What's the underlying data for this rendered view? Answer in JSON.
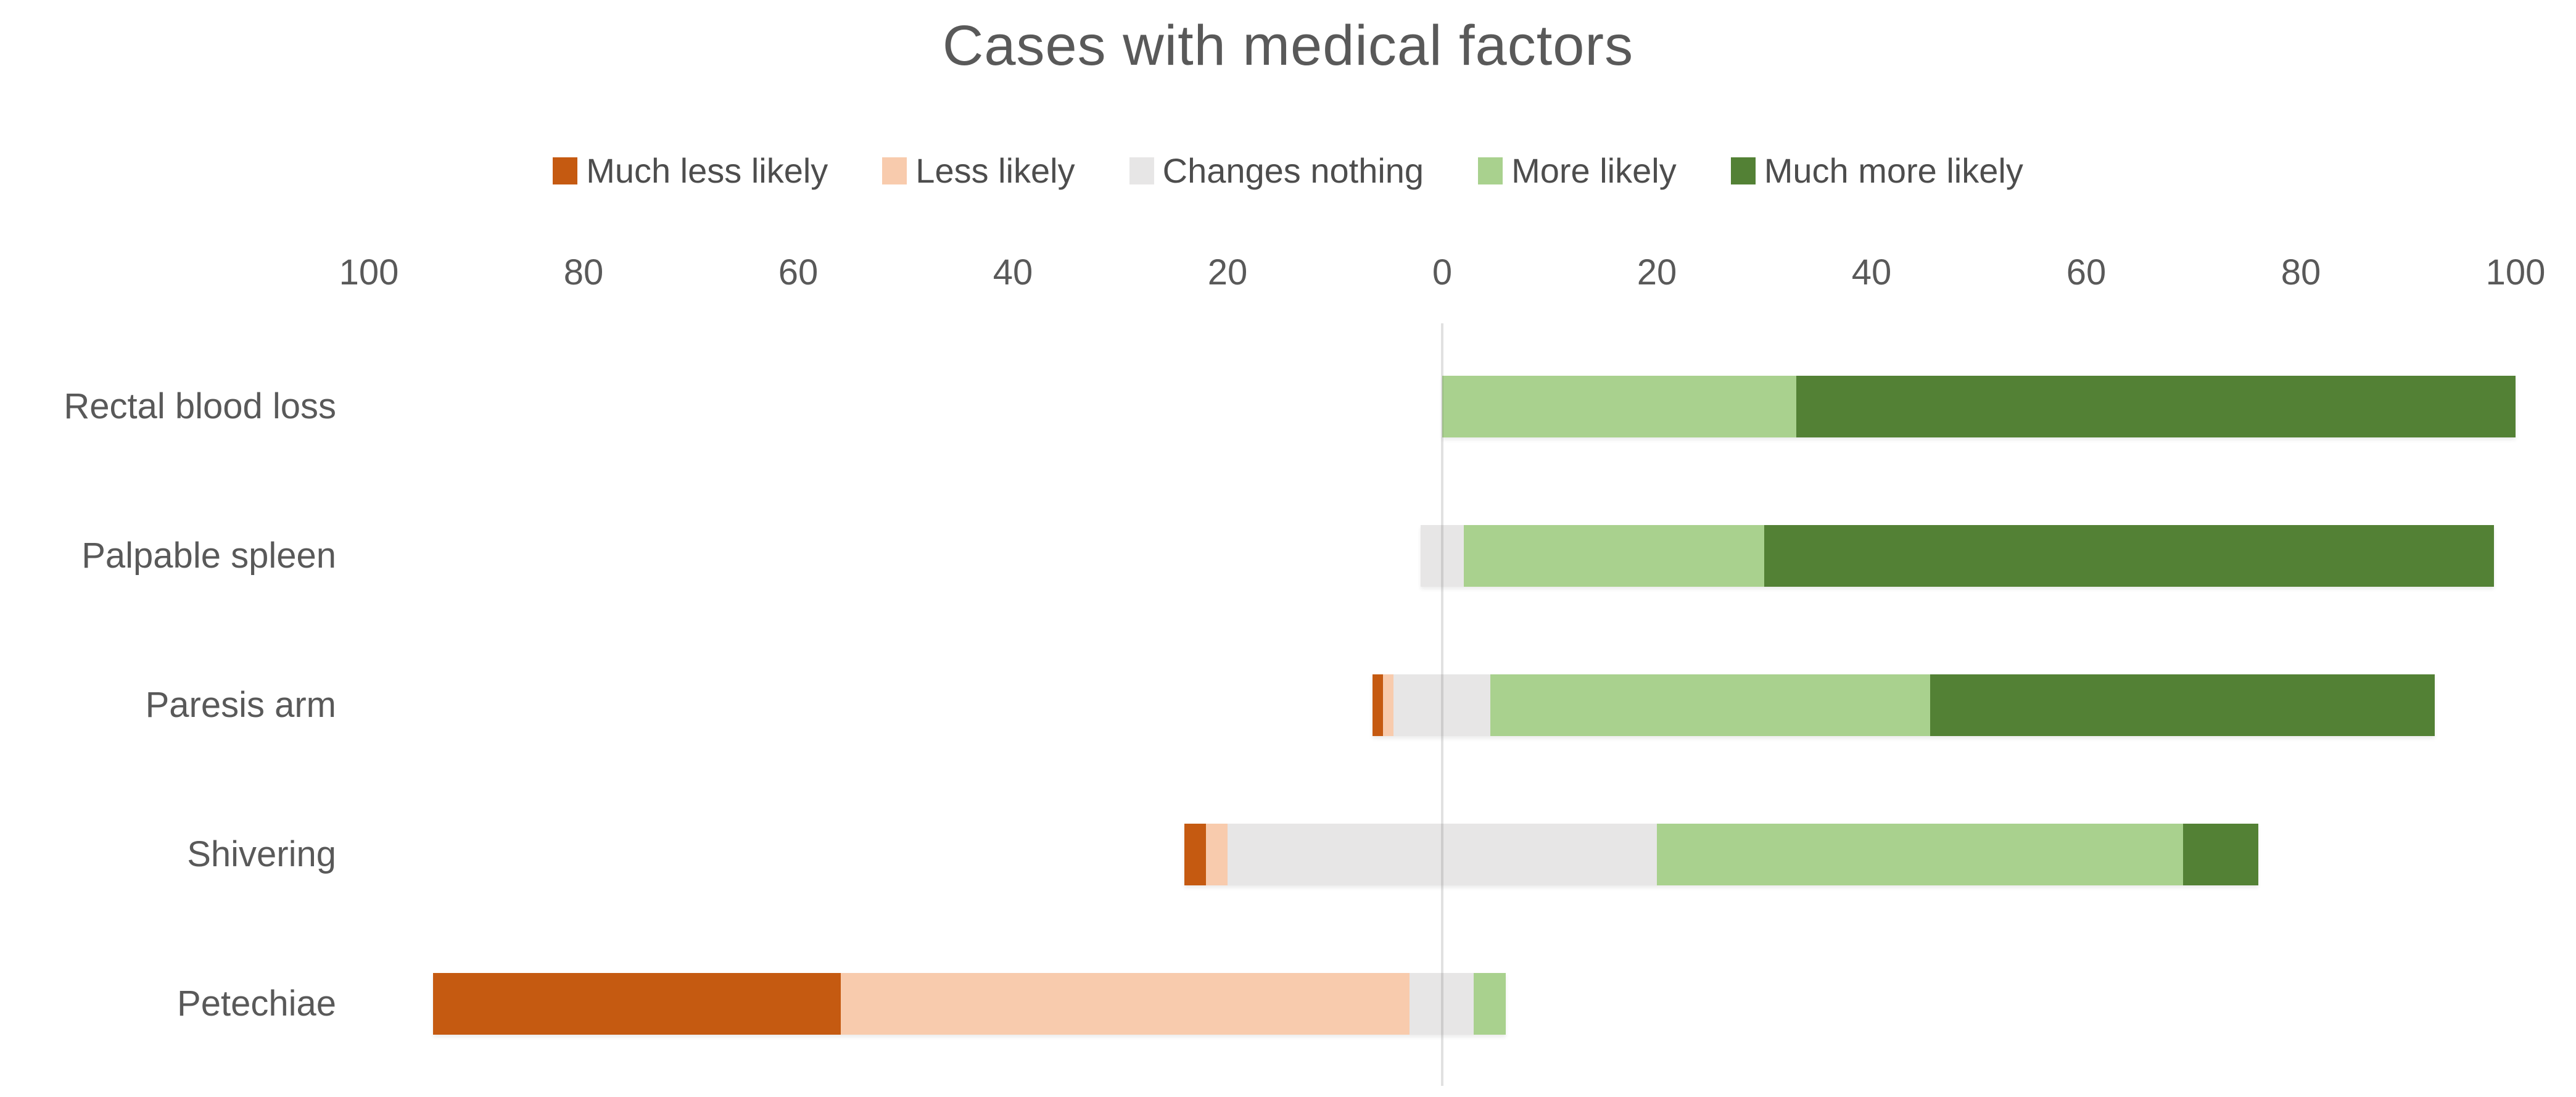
{
  "title": "Cases with medical factors",
  "colors": {
    "much_less_likely": "#C55A11",
    "less_likely": "#F8CBAD",
    "changes_nothing": "#E7E6E6",
    "more_likely": "#A9D18E",
    "much_more_likely": "#538135",
    "text": "#595959",
    "zero_gridline": "#D9D9D9",
    "background": "#FFFFFF"
  },
  "chart_data": {
    "type": "bar",
    "variant": "diverging-stacked-horizontal",
    "title": "Cases with medical factors",
    "categories": [
      "Rectal blood loss",
      "Palpable spleen",
      "Paresis arm",
      "Shivering",
      "Petechiae"
    ],
    "series": [
      {
        "name": "Much less likely",
        "color": "#C55A11",
        "values": [
          0,
          0,
          1,
          2,
          38
        ]
      },
      {
        "name": "Less likely",
        "color": "#F8CBAD",
        "values": [
          0,
          0,
          1,
          2,
          53
        ]
      },
      {
        "name": "Changes nothing",
        "color": "#E7E6E6",
        "values": [
          0,
          4,
          9,
          40,
          6
        ]
      },
      {
        "name": "More likely",
        "color": "#A9D18E",
        "values": [
          33,
          28,
          41,
          49,
          3
        ]
      },
      {
        "name": "Much more likely",
        "color": "#538135",
        "values": [
          67,
          68,
          47,
          7,
          0
        ]
      }
    ],
    "axis": {
      "tick_values": [
        -100,
        -80,
        -60,
        -40,
        -20,
        0,
        20,
        40,
        60,
        80,
        100
      ],
      "tick_labels": [
        "100",
        "80",
        "60",
        "40",
        "20",
        "0",
        "20",
        "40",
        "60",
        "80",
        "100"
      ],
      "xlim": [
        -100,
        100
      ],
      "tick_label_style": "absolute-values"
    },
    "layout": {
      "neutral_centered_on_zero": true,
      "legend_position": "top-center",
      "grid": "vertical-zero-line-only",
      "bar_direction": "horizontal"
    }
  }
}
